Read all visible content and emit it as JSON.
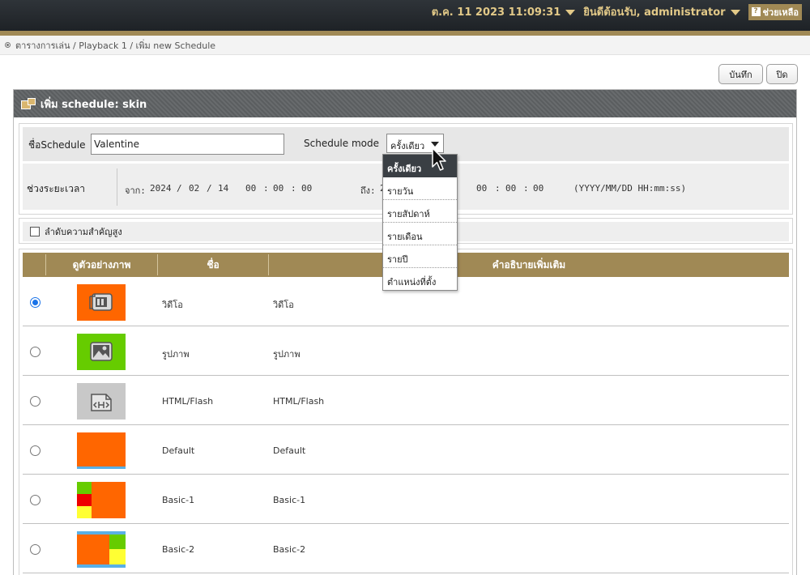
{
  "topbar": {
    "datetime": "ต.ค. 11 2023 11:09:31",
    "welcome": "ยินดีต้อนรับ, administrator",
    "help_label": "ช่วยเหลือ",
    "help_icon": "?"
  },
  "breadcrumb": {
    "path": "ตารางการเล่น / Playback 1 / เพิ่ม new Schedule"
  },
  "toolbar": {
    "save_label": "บันทึก",
    "close_label": "ปิด"
  },
  "panel": {
    "title": "เพิ่ม schedule: skin"
  },
  "form": {
    "name_label": "ชื่อSchedule",
    "name_value": "Valentine",
    "mode_label": "Schedule mode",
    "mode_value": "ครั้งเดียว",
    "period_label": "ช่วงระยะเวลา",
    "from_label": "จาก:",
    "from_year": "2024",
    "from_month": "02",
    "from_day": "14",
    "from_h": "00",
    "from_m": "00",
    "from_s": "00",
    "to_label": "ถึง:",
    "to_year_partial": "2",
    "to_h": "00",
    "to_m": "00",
    "to_s": "00",
    "format_hint": "(YYYY/MM/DD HH:mm:ss)",
    "sep_slash": "/",
    "sep_colon": ":"
  },
  "priority": {
    "label": "ลำดับความสำคัญสูง",
    "checked": false
  },
  "dropdown": {
    "options": [
      "ครั้งเดียว",
      "รายวัน",
      "รายสัปดาห์",
      "รายเดือน",
      "รายปี",
      "ตำแหน่งที่ตั้ง"
    ],
    "selected_index": 0
  },
  "table": {
    "headers": [
      "ดูตัวอย่างภาพ",
      "ชื่อ",
      "คำอธิบายเพิ่มเติม"
    ],
    "rows": [
      {
        "name": "วิดีโอ",
        "description": "วิดีโอ",
        "selected": true,
        "thumb": "video-icon"
      },
      {
        "name": "รูปภาพ",
        "description": "รูปภาพ",
        "selected": false,
        "thumb": "image-icon"
      },
      {
        "name": "HTML/Flash",
        "description": "HTML/Flash",
        "selected": false,
        "thumb": "html-icon"
      },
      {
        "name": "Default",
        "description": "Default",
        "selected": false,
        "thumb": "layout-default"
      },
      {
        "name": "Basic-1",
        "description": "Basic-1",
        "selected": false,
        "thumb": "layout-basic-1"
      },
      {
        "name": "Basic-2",
        "description": "Basic-2",
        "selected": false,
        "thumb": "layout-basic-2"
      }
    ]
  },
  "colors": {
    "accent_gold": "#a08955",
    "thumb_orange": "#ff6600",
    "thumb_green": "#66cc00",
    "thumb_gray": "#c8c8c8",
    "thumb_red": "#ee0000",
    "thumb_yellow": "#ffff33",
    "thumb_blue": "#5ab0e6"
  }
}
